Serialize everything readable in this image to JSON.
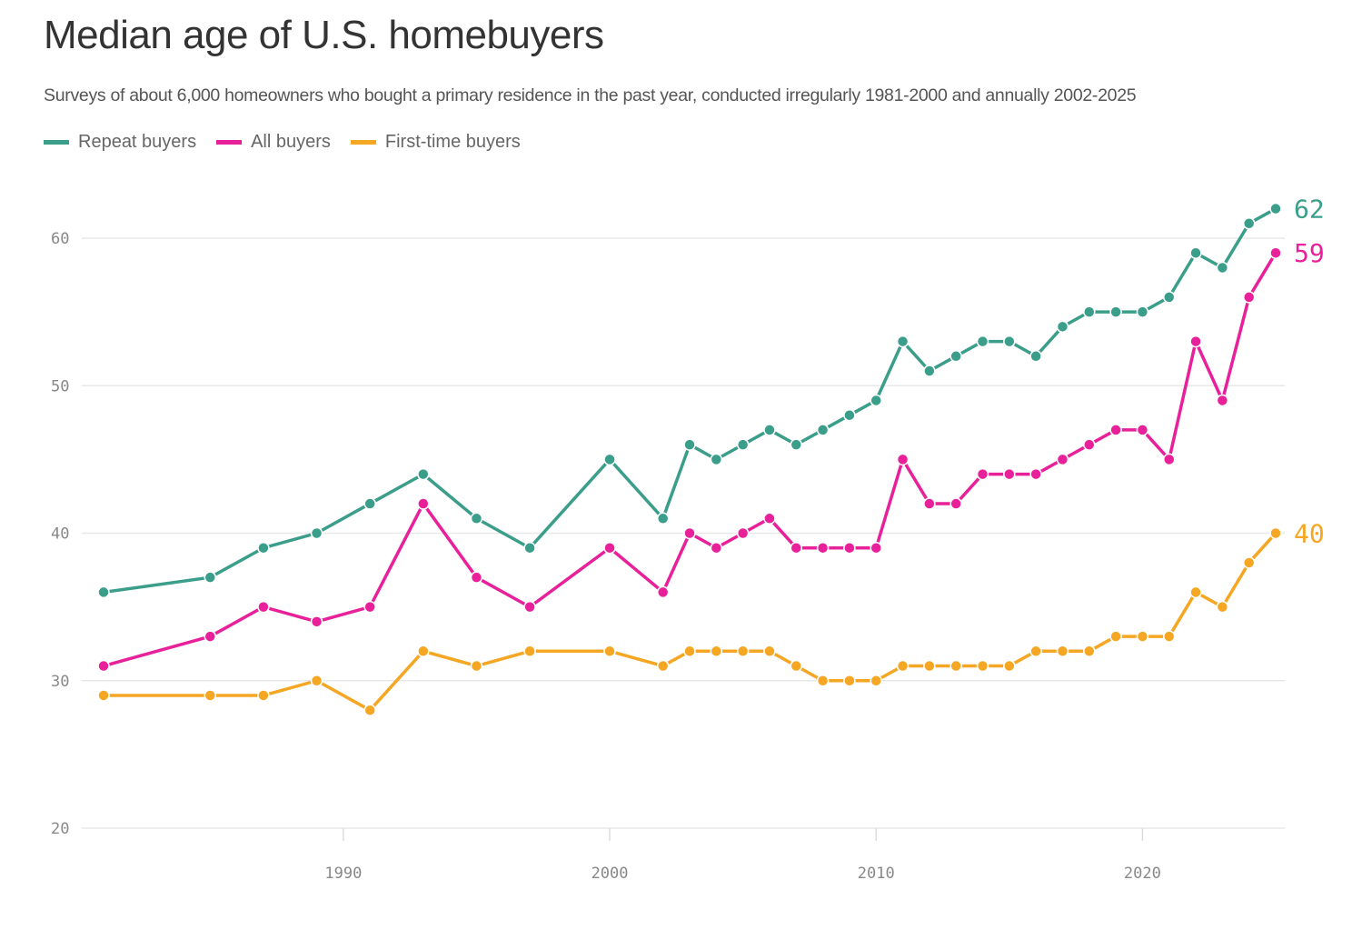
{
  "title": "Median age of U.S. homebuyers",
  "subtitle": "Surveys of about 6,000 homeowners who bought a primary residence in the past year, conducted irregularly 1981-2000 and annually 2002-2025",
  "chart_data": {
    "type": "line",
    "title": "Median age of U.S. homebuyers",
    "xlabel": "",
    "ylabel": "",
    "ylim": [
      20,
      62
    ],
    "xlim": [
      1981,
      2025
    ],
    "yticks": [
      20,
      30,
      40,
      50,
      60
    ],
    "xticks": [
      1990,
      2000,
      2010,
      2020
    ],
    "grid": true,
    "legend_placement": "top-left",
    "x": [
      1981,
      1985,
      1987,
      1989,
      1991,
      1993,
      1995,
      1997,
      2000,
      2002,
      2003,
      2004,
      2005,
      2006,
      2007,
      2008,
      2009,
      2010,
      2011,
      2012,
      2013,
      2014,
      2015,
      2016,
      2017,
      2018,
      2019,
      2020,
      2021,
      2022,
      2023,
      2024,
      2025
    ],
    "series": [
      {
        "name": "Repeat buyers",
        "color": "#3a9e8b",
        "end_label": "62",
        "values": [
          36,
          37,
          39,
          40,
          42,
          44,
          41,
          39,
          45,
          41,
          46,
          45,
          46,
          47,
          46,
          47,
          48,
          49,
          53,
          51,
          52,
          53,
          53,
          52,
          54,
          55,
          55,
          55,
          56,
          59,
          58,
          61,
          62
        ]
      },
      {
        "name": "All buyers",
        "color": "#e8209a",
        "end_label": "59",
        "values": [
          31,
          33,
          35,
          34,
          35,
          42,
          37,
          35,
          39,
          36,
          40,
          39,
          40,
          41,
          39,
          39,
          39,
          39,
          45,
          42,
          42,
          44,
          44,
          44,
          45,
          46,
          47,
          47,
          45,
          53,
          49,
          56,
          59
        ]
      },
      {
        "name": "First-time buyers",
        "color": "#f5a623",
        "end_label": "40",
        "values": [
          29,
          29,
          29,
          30,
          28,
          32,
          31,
          32,
          32,
          31,
          32,
          32,
          32,
          32,
          31,
          30,
          30,
          30,
          31,
          31,
          31,
          31,
          31,
          32,
          32,
          32,
          33,
          33,
          33,
          36,
          35,
          38,
          40
        ]
      }
    ]
  }
}
